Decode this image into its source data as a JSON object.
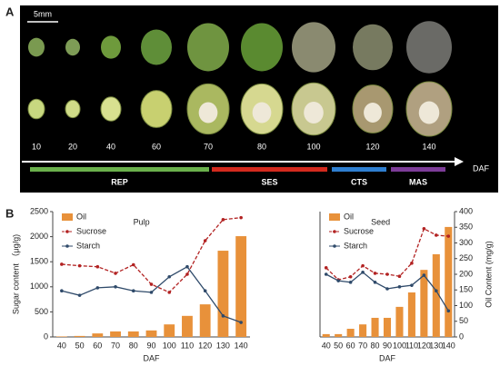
{
  "panel_a": {
    "label": "A",
    "scale_bar": "5mm",
    "daf_labels": [
      10,
      20,
      40,
      60,
      70,
      80,
      100,
      120,
      140
    ],
    "axis_label": "DAF",
    "stages": [
      {
        "name": "REP",
        "color": "#6ab04c"
      },
      {
        "name": "SES",
        "color": "#d32a1e"
      },
      {
        "name": "CTS",
        "color": "#2f7fd0"
      },
      {
        "name": "MAS",
        "color": "#7d3c98"
      }
    ]
  },
  "panel_b_label": "B",
  "chart_data": [
    {
      "type": "combo",
      "title": "Pulp",
      "xlabel": "DAF",
      "ylabel": "Sugar content （μg/g)",
      "categories": [
        40,
        50,
        60,
        70,
        80,
        90,
        100,
        110,
        120,
        130,
        140
      ],
      "ylim": [
        0,
        2500
      ],
      "yticks": [
        0,
        500,
        1000,
        1500,
        2000,
        2500
      ],
      "series": [
        {
          "name": "Oil",
          "kind": "bar",
          "color": "#e8913a",
          "values": [
            10,
            20,
            70,
            110,
            110,
            130,
            250,
            420,
            650,
            1720,
            2010
          ]
        },
        {
          "name": "Sucrose",
          "kind": "line",
          "color": "#b22222",
          "values": [
            1450,
            1420,
            1400,
            1270,
            1440,
            1050,
            890,
            1250,
            1920,
            2340,
            2380
          ]
        },
        {
          "name": "Starch",
          "kind": "line",
          "color": "#2f4a6a",
          "values": [
            920,
            830,
            980,
            1000,
            920,
            890,
            1200,
            1400,
            920,
            420,
            290
          ]
        }
      ]
    },
    {
      "type": "combo",
      "title": "Seed",
      "xlabel": "DAF",
      "y2label": "Oil Content (mg/g)",
      "categories": [
        40,
        50,
        60,
        70,
        80,
        90,
        100,
        110,
        120,
        130,
        140
      ],
      "ylim": [
        0,
        2500
      ],
      "y2lim": [
        0,
        400
      ],
      "y2ticks": [
        0,
        50,
        100,
        150,
        200,
        250,
        300,
        350,
        400
      ],
      "series": [
        {
          "name": "Oil",
          "kind": "bar",
          "axis": "y2",
          "color": "#e8913a",
          "values": [
            9,
            9,
            26,
            40,
            61,
            61,
            96,
            142,
            214,
            264,
            351
          ]
        },
        {
          "name": "Sucrose",
          "kind": "line",
          "color": "#b22222",
          "values": [
            1380,
            1140,
            1200,
            1420,
            1270,
            1250,
            1210,
            1470,
            2160,
            2030,
            2010
          ]
        },
        {
          "name": "Starch",
          "kind": "line",
          "color": "#2f4a6a",
          "values": [
            1250,
            1120,
            1090,
            1290,
            1090,
            960,
            1000,
            1030,
            1230,
            920,
            520
          ]
        }
      ]
    }
  ]
}
